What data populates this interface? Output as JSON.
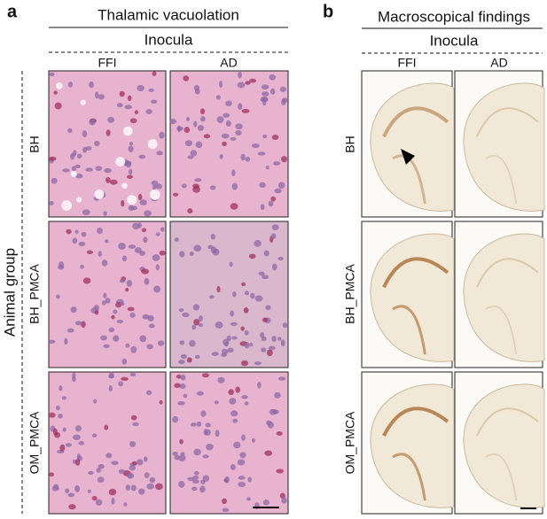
{
  "panels": [
    {
      "label": "a",
      "title": "Thalamic vacuolation",
      "subtitle": "Inocula",
      "columns": [
        "FFI",
        "AD"
      ],
      "rows": [
        "BH",
        "BH_PMCA",
        "OM_PMCA"
      ],
      "row_axis": "Animal group"
    },
    {
      "label": "b",
      "title": "Macroscopical findings",
      "subtitle": "Inocula",
      "columns": [
        "FFI",
        "AD"
      ],
      "rows": [
        "BH",
        "BH_PMCA",
        "OM_PMCA"
      ]
    }
  ]
}
